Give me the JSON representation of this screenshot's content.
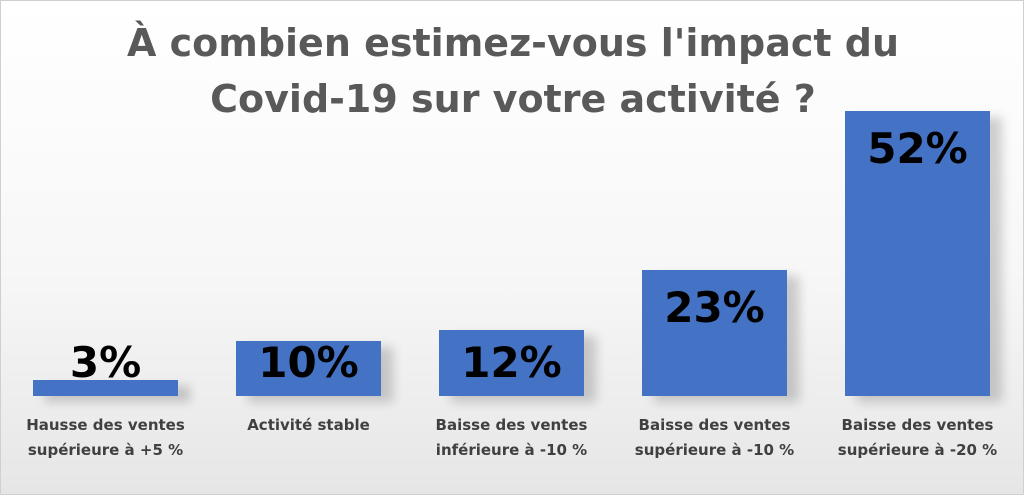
{
  "chart_data": {
    "type": "bar",
    "title": "À combien estimez-vous l'impact du Covid-19 sur votre activité ?",
    "categories": [
      "Hausse des ventes supérieure à +5 %",
      "Activité stable",
      "Baisse des ventes inférieure à -10 %",
      "Baisse des ventes supérieure à -10 %",
      "Baisse des ventes supérieure à -20 %"
    ],
    "values": [
      3,
      10,
      12,
      23,
      52
    ],
    "value_labels": [
      "3%",
      "10%",
      "12%",
      "23%",
      "52%"
    ],
    "color": "#4472c4"
  }
}
